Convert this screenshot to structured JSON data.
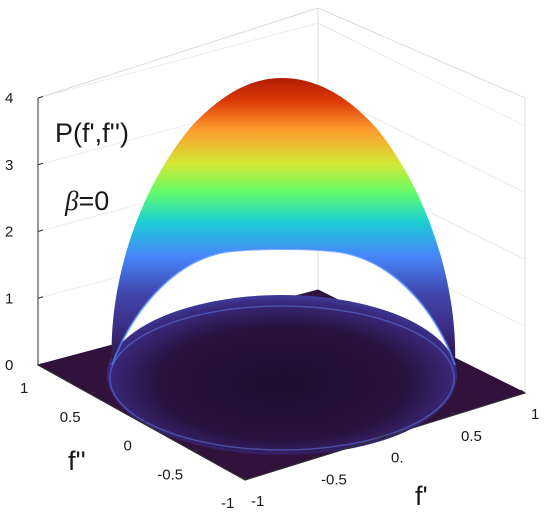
{
  "chart_data": {
    "type": "surface",
    "annotation_title": "P(f',f'')",
    "annotation_beta_symbol": "β",
    "annotation_beta_value": "=0",
    "xlabel": "f'",
    "ylabel": "f''",
    "zlim": [
      0,
      4
    ],
    "xlim": [
      -1,
      1
    ],
    "ylim": [
      -1,
      1
    ],
    "z_ticks": [
      "0",
      "1",
      "2",
      "3",
      "4"
    ],
    "x_ticks": [
      "-1",
      "-0.5",
      "0.",
      "0.5",
      "1"
    ],
    "y_ticks": [
      "-1",
      "-0.5",
      "0",
      "0.5",
      "1"
    ],
    "peak_value": 4,
    "support_radius": 1,
    "rim_height": 2.2,
    "colormap": [
      "#30123b",
      "#4146ad",
      "#4686fb",
      "#1bcfd4",
      "#61fc6c",
      "#d2e935",
      "#fe9b2d",
      "#db3a07",
      "#7a0403"
    ],
    "floor_color": "#30123b",
    "grid": true
  }
}
